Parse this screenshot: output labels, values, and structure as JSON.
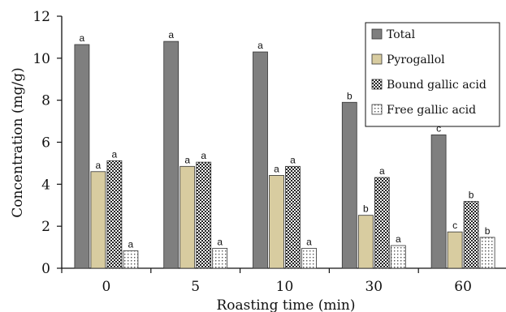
{
  "chart_data": {
    "type": "bar",
    "title": "",
    "xlabel": "Roasting time (min)",
    "ylabel": "Concentration (mg/g)",
    "ylim": [
      0,
      12
    ],
    "yticks": [
      "0",
      "2",
      "4",
      "6",
      "8",
      "10",
      "12"
    ],
    "categories": [
      "0",
      "5",
      "10",
      "30",
      "60"
    ],
    "grid": false,
    "legend_position": "top-right",
    "series": [
      {
        "name": "Total",
        "color": "#7f7f7f",
        "pattern": "solid",
        "values": [
          10.65,
          10.8,
          10.3,
          7.9,
          6.35
        ],
        "labels": [
          "a",
          "a",
          "a",
          "b",
          "c"
        ]
      },
      {
        "name": "Pyrogallol",
        "color": "#d8cca0",
        "pattern": "solid",
        "values": [
          4.6,
          4.85,
          4.42,
          2.52,
          1.73
        ],
        "labels": [
          "a",
          "a",
          "a",
          "b",
          "c"
        ]
      },
      {
        "name": "Bound gallic acid",
        "color": "#222222",
        "pattern": "checker",
        "values": [
          5.12,
          5.05,
          4.85,
          4.32,
          3.18
        ],
        "labels": [
          "a",
          "a",
          "a",
          "a",
          "b"
        ]
      },
      {
        "name": "Free gallic acid",
        "color": "#bbbbbb",
        "pattern": "dots",
        "values": [
          0.83,
          0.95,
          0.95,
          1.08,
          1.47
        ],
        "labels": [
          "a",
          "a",
          "a",
          "a",
          "b"
        ]
      }
    ]
  }
}
